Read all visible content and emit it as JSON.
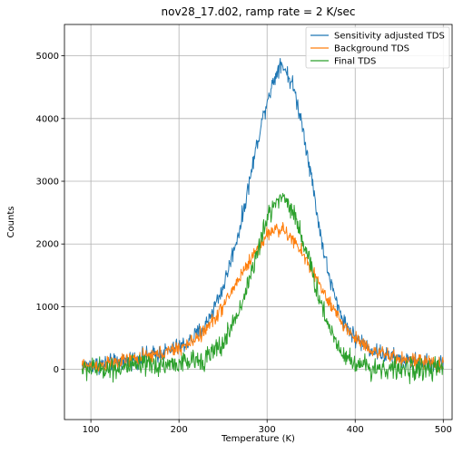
{
  "chart_data": {
    "type": "line",
    "title": "nov28_17.d02, ramp rate = 2 K/sec",
    "xlabel": "Temperature (K)",
    "ylabel": "Counts",
    "xlim": [
      70,
      510
    ],
    "ylim": [
      -800,
      5500
    ],
    "xticks": [
      100,
      200,
      300,
      400,
      500
    ],
    "yticks": [
      0,
      1000,
      2000,
      3000,
      4000,
      5000
    ],
    "grid": true,
    "legend_position": "top-right",
    "x_range": [
      90,
      500
    ],
    "series": [
      {
        "name": "Sensitivity adjusted TDS",
        "color": "#1f77b4",
        "x": [
          90,
          110,
          130,
          150,
          170,
          190,
          210,
          230,
          250,
          270,
          280,
          290,
          300,
          310,
          315,
          320,
          330,
          340,
          350,
          360,
          370,
          380,
          390,
          400,
          420,
          440,
          460,
          480,
          500
        ],
        "y": [
          50,
          80,
          110,
          170,
          230,
          300,
          420,
          700,
          1300,
          2300,
          3000,
          3700,
          4300,
          4700,
          4900,
          4800,
          4500,
          3900,
          3100,
          2200,
          1500,
          1000,
          700,
          500,
          300,
          200,
          130,
          100,
          80
        ],
        "noise": 120
      },
      {
        "name": "Background TDS",
        "color": "#ff7f0e",
        "x": [
          90,
          110,
          130,
          150,
          170,
          190,
          210,
          230,
          250,
          270,
          290,
          300,
          310,
          320,
          330,
          340,
          350,
          360,
          370,
          380,
          390,
          400,
          420,
          440,
          460,
          480,
          500
        ],
        "y": [
          50,
          70,
          110,
          170,
          220,
          290,
          390,
          620,
          1000,
          1500,
          1950,
          2150,
          2250,
          2200,
          2050,
          1850,
          1600,
          1350,
          1050,
          850,
          650,
          500,
          300,
          200,
          150,
          100,
          80
        ],
        "noise": 100
      },
      {
        "name": "Final TDS",
        "color": "#2ca02c",
        "x": [
          90,
          110,
          130,
          150,
          170,
          190,
          210,
          230,
          250,
          270,
          290,
          300,
          310,
          320,
          330,
          340,
          350,
          360,
          370,
          380,
          390,
          400,
          420,
          440,
          460,
          480,
          500
        ],
        "y": [
          0,
          10,
          20,
          40,
          60,
          80,
          110,
          180,
          400,
          1000,
          1900,
          2400,
          2700,
          2750,
          2500,
          2100,
          1600,
          1100,
          700,
          400,
          200,
          100,
          30,
          0,
          0,
          0,
          0
        ],
        "noise": 150
      }
    ]
  }
}
